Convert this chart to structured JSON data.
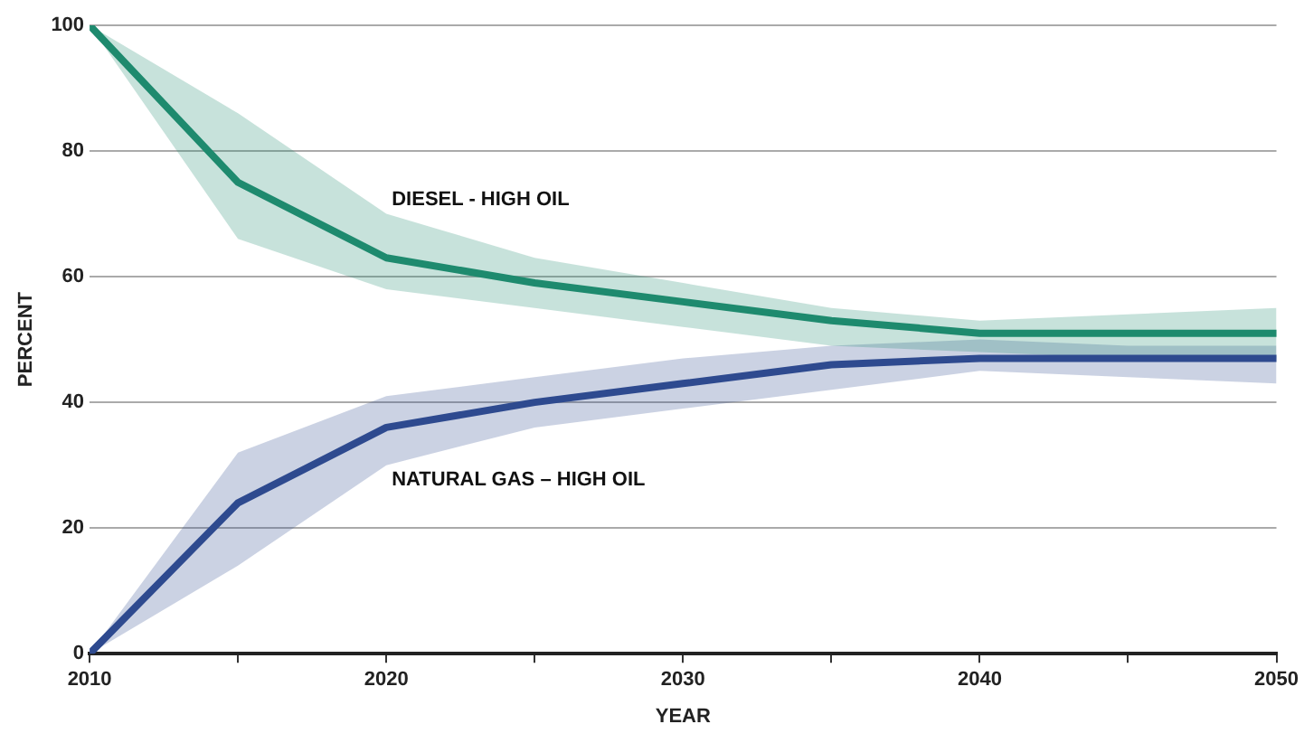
{
  "chart_data": {
    "type": "line",
    "xlabel": "YEAR",
    "ylabel": "PERCENT",
    "x": [
      2010,
      2015,
      2020,
      2025,
      2030,
      2035,
      2040,
      2045,
      2050
    ],
    "series": [
      {
        "name": "DIESEL - HIGH OIL",
        "color": "#1e8a6e",
        "values": [
          100,
          75,
          63,
          59,
          56,
          53,
          51,
          51,
          51
        ],
        "lower": [
          100,
          66,
          58,
          55,
          52,
          49,
          48,
          47,
          47
        ],
        "upper": [
          100,
          86,
          70,
          63,
          59,
          55,
          53,
          54,
          55
        ]
      },
      {
        "name": "NATURAL GAS – HIGH OIL",
        "color": "#2e4a8f",
        "values": [
          0,
          24,
          36,
          40,
          43,
          46,
          47,
          47,
          47
        ],
        "lower": [
          0,
          14,
          30,
          36,
          39,
          42,
          45,
          44,
          43
        ],
        "upper": [
          0,
          32,
          41,
          44,
          47,
          49,
          50,
          49,
          49
        ]
      }
    ],
    "xlim": [
      2010,
      2050
    ],
    "xticks": [
      2010,
      {
        "value": 2015,
        "label": null
      },
      2020,
      {
        "value": 2025,
        "label": null
      },
      2030,
      {
        "value": 2035,
        "label": null
      },
      2040,
      {
        "value": 2045,
        "label": null
      },
      2050
    ],
    "ylim": [
      0,
      100
    ],
    "yticks": [
      0,
      20,
      40,
      60,
      80,
      100
    ],
    "grid": "y",
    "legend": false,
    "marker": "none",
    "line_style": "solid"
  }
}
